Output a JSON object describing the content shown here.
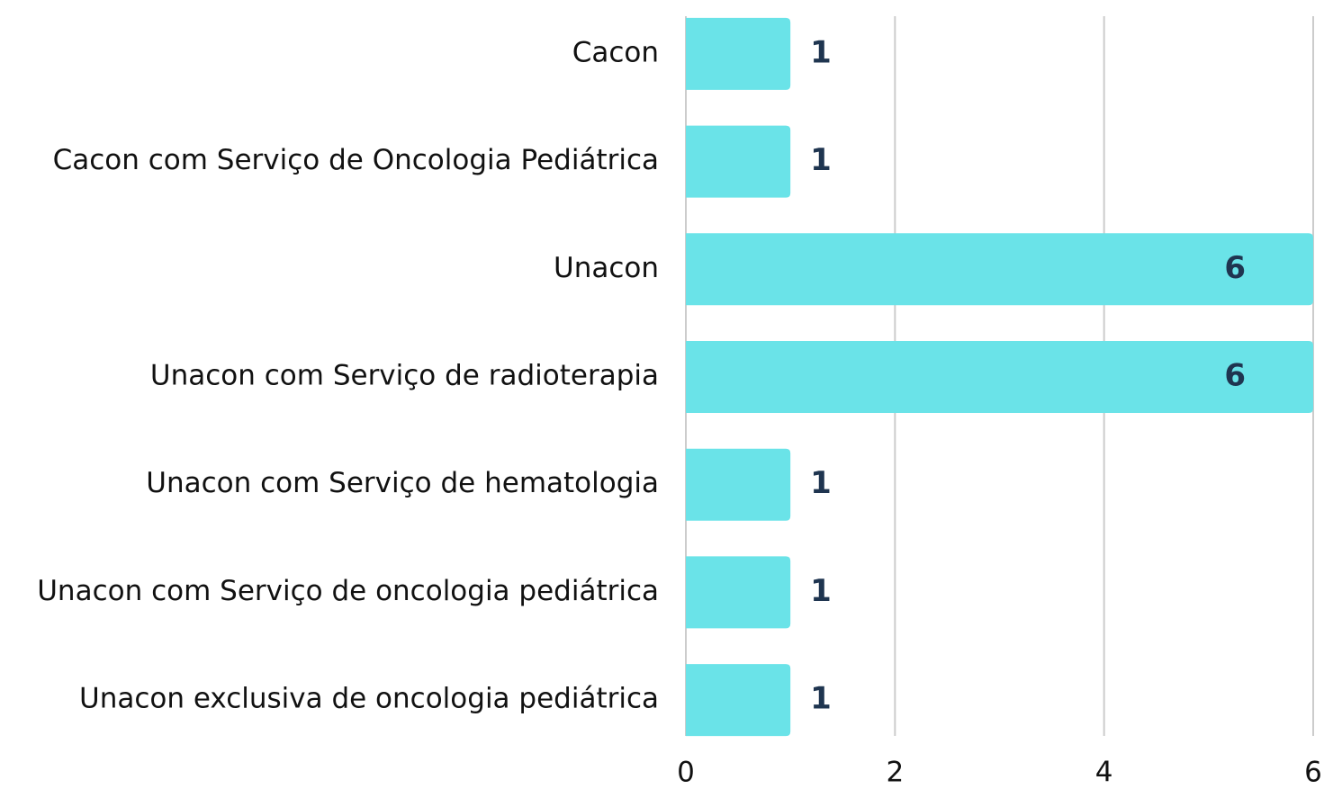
{
  "chart_data": {
    "type": "hbar",
    "categories": [
      "Cacon",
      "Cacon com Serviço de Oncologia Pediátrica",
      "Unacon",
      "Unacon com Serviço de radioterapia",
      "Unacon com Serviço de hematologia",
      "Unacon com Serviço de oncologia pediátrica",
      "Unacon exclusiva de oncologia pediátrica"
    ],
    "values": [
      1,
      1,
      6,
      6,
      1,
      1,
      1
    ],
    "color": "#6ae3e8",
    "xlim": [
      0,
      6
    ],
    "xticks": [
      0,
      2,
      4,
      6
    ],
    "grid": true
  }
}
